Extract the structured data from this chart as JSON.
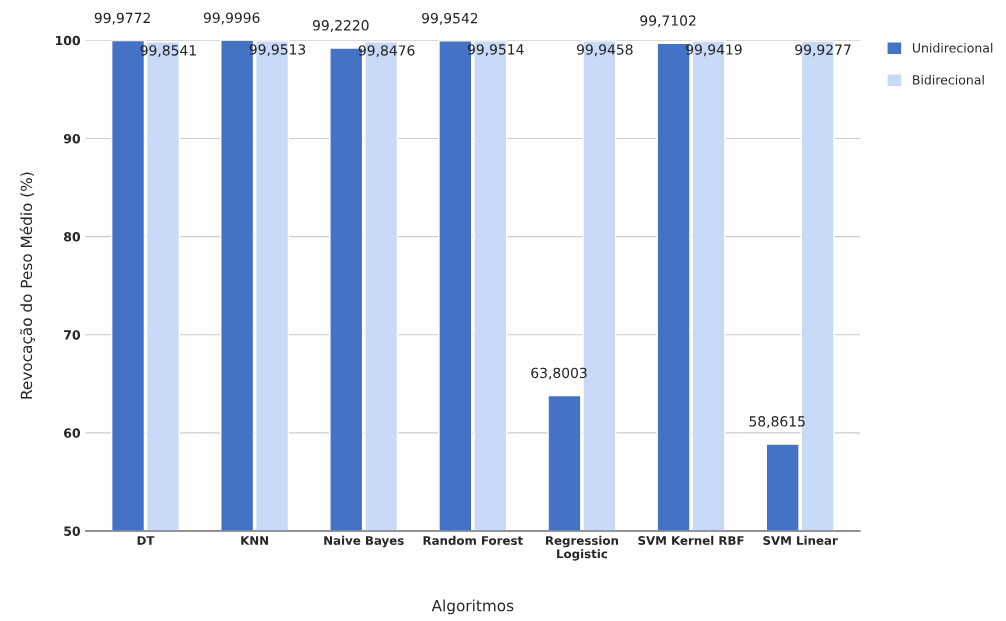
{
  "chart_data": {
    "type": "bar",
    "categories": [
      "DT",
      "KNN",
      "Naive Bayes",
      "Random Forest",
      "Regression\nLogistic",
      "SVM Kernel RBF",
      "SVM Linear"
    ],
    "series": [
      {
        "name": "Unidirecional",
        "color": "#4472c4",
        "values": [
          99.9772,
          99.9996,
          99.222,
          99.9542,
          63.8003,
          99.7102,
          58.8615
        ],
        "value_labels": [
          "99,9772",
          "99,9996",
          "99,2220",
          "99,9542",
          "63,8003",
          "99,7102",
          "58,8615"
        ]
      },
      {
        "name": "Bidirecional",
        "color": "#c9daf8",
        "values": [
          99.8541,
          99.9513,
          99.8476,
          99.9514,
          99.9458,
          99.9419,
          99.9277
        ],
        "value_labels": [
          "99,8541",
          "99,9513",
          "99,8476",
          "99,9514",
          "99,9458",
          "99,9419",
          "99,9277"
        ]
      }
    ],
    "xlabel": "Algoritmos",
    "ylabel": "Revocação do Peso Médio (%)",
    "ylim": [
      50,
      100
    ],
    "yticks": [
      50,
      60,
      70,
      80,
      90,
      100
    ],
    "grid": "y",
    "legend": "top right"
  }
}
